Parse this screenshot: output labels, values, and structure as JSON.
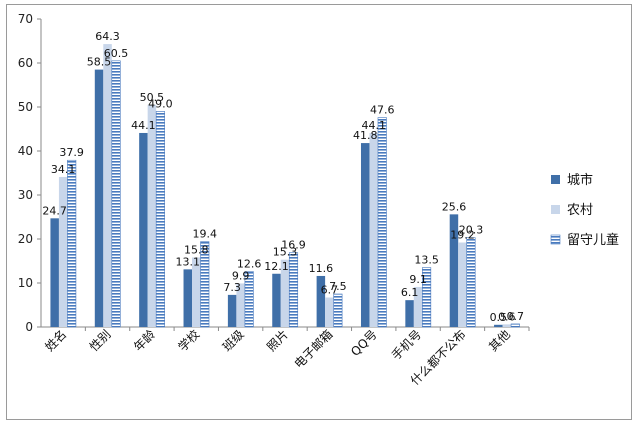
{
  "chart_data": {
    "type": "bar",
    "title": "",
    "xlabel": "",
    "ylabel": "",
    "ylim": [
      0,
      70
    ],
    "yticks": [
      0,
      10,
      20,
      30,
      40,
      50,
      60,
      70
    ],
    "grid": false,
    "legend_position": "right",
    "categories": [
      "姓名",
      "性别",
      "年龄",
      "学校",
      "班级",
      "照片",
      "电子邮箱",
      "QQ号",
      "手机号",
      "什么都不公布",
      "其他"
    ],
    "series": [
      {
        "name": "城市",
        "color": "#3f6fa8",
        "pattern": "solid",
        "values": [
          24.7,
          58.5,
          44.1,
          13.1,
          7.3,
          12.1,
          11.6,
          41.8,
          6.1,
          25.6,
          0.5
        ]
      },
      {
        "name": "农村",
        "color": "#c8d6ea",
        "pattern": "solid",
        "values": [
          34.1,
          64.3,
          50.5,
          15.8,
          9.9,
          15.3,
          6.7,
          44.1,
          9.1,
          19.2,
          0.6
        ]
      },
      {
        "name": "留守儿童",
        "color": "#4a7bbf",
        "pattern": "horizontal-stripes",
        "values": [
          37.9,
          60.5,
          49.0,
          19.4,
          12.6,
          16.9,
          7.5,
          47.6,
          13.5,
          20.3,
          0.7
        ]
      }
    ]
  }
}
